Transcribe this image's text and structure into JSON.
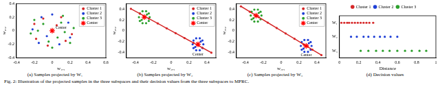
{
  "caption": "Fig. 2: Illustration of the projected samples in the three subspaces and their decision values from the three subspaces to MFRC.",
  "chart_data": [
    {
      "type": "scatter",
      "title": "(a) Samples projected by W₁",
      "x_label": "w₁,₁",
      "y_label": "w₁,₂",
      "xlim": [
        -0.4,
        0.6
      ],
      "xticks": [
        -0.4,
        -0.2,
        0,
        0.2,
        0.4,
        0.6
      ],
      "ylim": [
        -0.4,
        0.4
      ],
      "yticks": [
        -0.4,
        -0.2,
        0,
        0.2,
        0.4
      ],
      "grid": false,
      "legend": "upper right",
      "annotations": [
        {
          "text": "Center",
          "x": 0.1,
          "y": 0.04
        }
      ],
      "series": [
        {
          "name": "Cluster 1",
          "color": "#d62728",
          "marker": "circle",
          "x": [
            -0.2,
            0.1,
            0.22,
            -0.05,
            0.15,
            -0.18,
            0.05,
            -0.1
          ],
          "y": [
            0.1,
            0.2,
            -0.05,
            -0.22,
            -0.15,
            -0.12,
            0.08,
            0.18
          ]
        },
        {
          "name": "Cluster 2",
          "color": "#1f3fd6",
          "marker": "circle",
          "x": [
            -0.12,
            0.18,
            -0.22,
            0.08,
            0.0,
            -0.06,
            0.2,
            -0.15
          ],
          "y": [
            0.2,
            0.12,
            0.02,
            -0.2,
            0.24,
            -0.08,
            -0.1,
            -0.18
          ]
        },
        {
          "name": "Cluster 3",
          "color": "#2ca02c",
          "marker": "circle",
          "x": [
            -0.24,
            0.24,
            0.0,
            -0.1,
            0.12,
            0.14,
            -0.2,
            0.06,
            -0.04,
            0.2,
            -0.16,
            0.1
          ],
          "y": [
            -0.04,
            0.04,
            -0.25,
            0.1,
            0.22,
            -0.02,
            0.16,
            -0.1,
            -0.16,
            -0.18,
            0.0,
            0.12
          ]
        },
        {
          "name": "Center",
          "color": "#ff0000",
          "marker": "star",
          "x": [
            0
          ],
          "y": [
            0
          ]
        }
      ]
    },
    {
      "type": "scatter",
      "title": "(b) Samples projected by W₂",
      "x_label": "w₂,₁",
      "y_label": "w₂,₂",
      "xlim": [
        -0.5,
        0.5
      ],
      "xticks": [
        -0.4,
        -0.2,
        0,
        0.2,
        0.4
      ],
      "ylim": [
        -0.5,
        0.5
      ],
      "yticks": [
        -0.4,
        -0.2,
        0,
        0.2,
        0.4
      ],
      "grid": false,
      "legend": "upper right",
      "annotations": [
        {
          "text": "Center",
          "x": 0.3,
          "y": -0.44
        }
      ],
      "series": [
        {
          "name": "Cluster 1",
          "color": "#d62728",
          "marker": "circle",
          "line_style": "solid",
          "x": [
            -0.45,
            -0.35,
            -0.25,
            -0.15,
            -0.05,
            0.05,
            0.15,
            0.25,
            0.35,
            0.45
          ],
          "y": [
            0.405,
            0.315,
            0.225,
            0.135,
            0.045,
            -0.045,
            -0.135,
            -0.225,
            -0.315,
            -0.405
          ]
        },
        {
          "name": "Cluster 2",
          "color": "#1f3fd6",
          "marker": "circle",
          "x": [
            0.36,
            0.35,
            0.32,
            0.28,
            0.25,
            0.24,
            0.25,
            0.28,
            0.32,
            0.35,
            0.3,
            0.33,
            0.27
          ],
          "y": [
            -0.25,
            -0.18,
            -0.14,
            -0.14,
            -0.18,
            -0.25,
            -0.32,
            -0.36,
            -0.36,
            -0.32,
            -0.25,
            -0.2,
            -0.3
          ]
        },
        {
          "name": "Cluster 3",
          "color": "#2ca02c",
          "marker": "circle",
          "x": [
            -0.24,
            -0.25,
            -0.28,
            -0.32,
            -0.35,
            -0.36,
            -0.35,
            -0.32,
            -0.28,
            -0.25,
            -0.3,
            -0.27,
            -0.33
          ],
          "y": [
            0.25,
            0.32,
            0.36,
            0.36,
            0.32,
            0.25,
            0.18,
            0.14,
            0.14,
            0.18,
            0.25,
            0.3,
            0.2
          ]
        },
        {
          "name": "Center",
          "color": "#ff0000",
          "marker": "star",
          "x": [
            -0.3,
            0.3
          ],
          "y": [
            0.25,
            -0.25
          ]
        }
      ]
    },
    {
      "type": "scatter",
      "title": "(c) Samples projected by W₃",
      "x_label": "w₃,₁",
      "y_label": "w₃,₂",
      "xlim": [
        -0.5,
        0.5
      ],
      "xticks": [
        -0.4,
        -0.2,
        0,
        0.2,
        0.4
      ],
      "ylim": [
        -0.5,
        0.5
      ],
      "yticks": [
        -0.4,
        -0.2,
        0,
        0.2,
        0.4
      ],
      "grid": false,
      "legend": "upper right",
      "annotations": [
        {
          "text": "Center",
          "x": 0.28,
          "y": -0.45
        }
      ],
      "series": [
        {
          "name": "Cluster 1",
          "color": "#d62728",
          "marker": "circle",
          "line_style": "solid",
          "x": [
            -0.45,
            -0.35,
            -0.25,
            -0.15,
            -0.05,
            0.05,
            0.15,
            0.25,
            0.35,
            0.45
          ],
          "y": [
            0.45,
            0.35,
            0.25,
            0.15,
            0.05,
            -0.05,
            -0.15,
            -0.25,
            -0.35,
            -0.45
          ]
        },
        {
          "name": "Cluster 2",
          "color": "#1f3fd6",
          "marker": "circle",
          "x": [
            0.34,
            0.33,
            0.3,
            0.26,
            0.23,
            0.22,
            0.23,
            0.26,
            0.3,
            0.33,
            0.28,
            0.31,
            0.25
          ],
          "y": [
            -0.28,
            -0.21,
            -0.17,
            -0.17,
            -0.21,
            -0.28,
            -0.35,
            -0.39,
            -0.39,
            -0.35,
            -0.28,
            -0.23,
            -0.33
          ]
        },
        {
          "name": "Cluster 3",
          "color": "#2ca02c",
          "marker": "circle",
          "x": [
            -0.22,
            -0.23,
            -0.26,
            -0.3,
            -0.33,
            -0.34,
            -0.33,
            -0.3,
            -0.26,
            -0.23,
            -0.28,
            -0.25,
            -0.31
          ],
          "y": [
            0.28,
            0.35,
            0.39,
            0.39,
            0.35,
            0.28,
            0.21,
            0.17,
            0.17,
            0.21,
            0.28,
            0.33,
            0.23
          ]
        },
        {
          "name": "Center",
          "color": "#ff0000",
          "marker": "star",
          "x": [
            -0.28,
            0.28
          ],
          "y": [
            0.28,
            -0.28
          ]
        }
      ]
    },
    {
      "type": "scatter",
      "title": "(d) Decision values",
      "x_label": "Distance",
      "categories": [
        "W₁",
        "W₂",
        "W₃"
      ],
      "xlim": [
        0,
        1
      ],
      "xticks": [
        0,
        0.2,
        0.4,
        0.6,
        0.8,
        1
      ],
      "grid": false,
      "legend": "top",
      "series": [
        {
          "name": "Cluster 1",
          "color": "#d62728",
          "marker": "circle",
          "x": [
            0.02,
            0.05,
            0.08,
            0.1,
            0.13,
            0.16,
            0.19,
            0.22,
            0.25,
            0.28,
            0.31,
            0.35
          ],
          "y": [
            "W₁",
            "W₁",
            "W₁",
            "W₁",
            "W₁",
            "W₁",
            "W₁",
            "W₁",
            "W₁",
            "W₁",
            "W₁",
            "W₁"
          ]
        },
        {
          "name": "Cluster 2",
          "color": "#1f3fd6",
          "marker": "circle",
          "x": [
            0.12,
            0.18,
            0.25,
            0.3,
            0.36,
            0.42,
            0.47,
            0.53,
            0.6
          ],
          "y": [
            "W₂",
            "W₂",
            "W₂",
            "W₂",
            "W₂",
            "W₂",
            "W₂",
            "W₂",
            "W₂"
          ]
        },
        {
          "name": "Cluster 3",
          "color": "#2ca02c",
          "marker": "circle",
          "x": [
            0.22,
            0.3,
            0.38,
            0.45,
            0.52,
            0.6,
            0.68,
            0.75,
            0.83,
            0.9
          ],
          "y": [
            "W₃",
            "W₃",
            "W₃",
            "W₃",
            "W₃",
            "W₃",
            "W₃",
            "W₃",
            "W₃",
            "W₃"
          ]
        }
      ]
    }
  ]
}
